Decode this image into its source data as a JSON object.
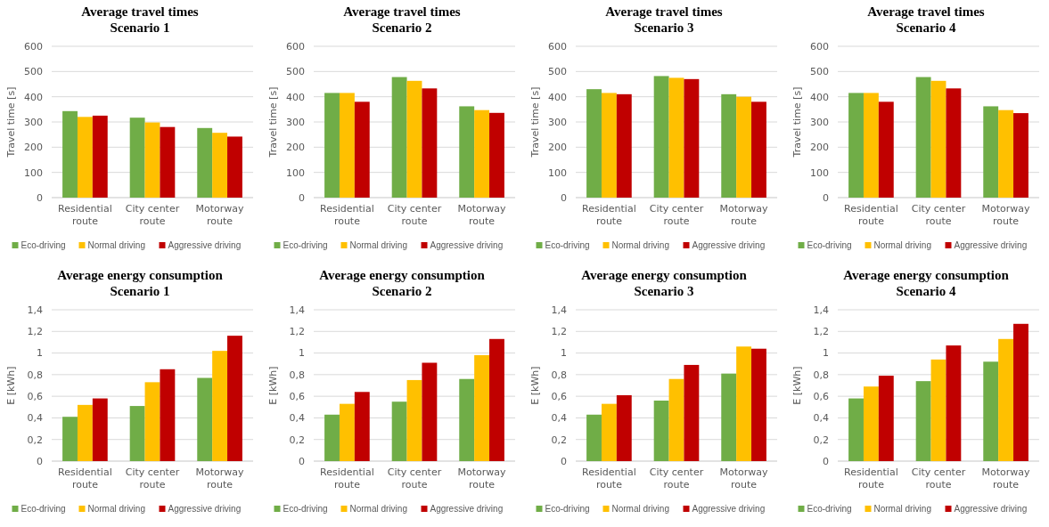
{
  "chart_data": [
    {
      "type": "bar",
      "title": "Average travel times",
      "subtitle": "Scenario 1",
      "ylabel": "Travel time [s]",
      "categories": [
        "Residential route",
        "City center route",
        "Motorway route"
      ],
      "ylim": [
        0,
        600
      ],
      "yticks": [
        0,
        100,
        200,
        300,
        400,
        500,
        600
      ],
      "grid": "y",
      "legend": "bottom",
      "series": [
        {
          "name": "Eco-driving",
          "color": "#70ad47",
          "values": [
            343,
            317,
            276
          ]
        },
        {
          "name": "Normal driving",
          "color": "#ffc000",
          "values": [
            320,
            298,
            257
          ]
        },
        {
          "name": "Aggressive driving",
          "color": "#c00000",
          "values": [
            325,
            280,
            242
          ]
        }
      ]
    },
    {
      "type": "bar",
      "title": "Average travel times",
      "subtitle": "Scenario 2",
      "ylabel": "Travel time [s]",
      "categories": [
        "Residential route",
        "City center route",
        "Motorway route"
      ],
      "ylim": [
        0,
        600
      ],
      "yticks": [
        0,
        100,
        200,
        300,
        400,
        500,
        600
      ],
      "grid": "y",
      "legend": "bottom",
      "series": [
        {
          "name": "Eco-driving",
          "color": "#70ad47",
          "values": [
            415,
            478,
            362
          ]
        },
        {
          "name": "Normal driving",
          "color": "#ffc000",
          "values": [
            415,
            463,
            347
          ]
        },
        {
          "name": "Aggressive driving",
          "color": "#c00000",
          "values": [
            380,
            433,
            336
          ]
        }
      ]
    },
    {
      "type": "bar",
      "title": "Average travel times",
      "subtitle": "Scenario 3",
      "ylabel": "Travel time [s]",
      "categories": [
        "Residential route",
        "City center route",
        "Motorway route"
      ],
      "ylim": [
        0,
        600
      ],
      "yticks": [
        0,
        100,
        200,
        300,
        400,
        500,
        600
      ],
      "grid": "y",
      "legend": "bottom",
      "series": [
        {
          "name": "Eco-driving",
          "color": "#70ad47",
          "values": [
            430,
            482,
            410
          ]
        },
        {
          "name": "Normal driving",
          "color": "#ffc000",
          "values": [
            415,
            475,
            400
          ]
        },
        {
          "name": "Aggressive driving",
          "color": "#c00000",
          "values": [
            410,
            470,
            380
          ]
        }
      ]
    },
    {
      "type": "bar",
      "title": "Average travel times",
      "subtitle": "Scenario 4",
      "ylabel": "Travel time [s]",
      "categories": [
        "Residential route",
        "City center route",
        "Motorway route"
      ],
      "ylim": [
        0,
        600
      ],
      "yticks": [
        0,
        100,
        200,
        300,
        400,
        500,
        600
      ],
      "grid": "y",
      "legend": "bottom",
      "series": [
        {
          "name": "Eco-driving",
          "color": "#70ad47",
          "values": [
            415,
            478,
            362
          ]
        },
        {
          "name": "Normal driving",
          "color": "#ffc000",
          "values": [
            415,
            463,
            347
          ]
        },
        {
          "name": "Aggressive driving",
          "color": "#c00000",
          "values": [
            380,
            433,
            335
          ]
        }
      ]
    },
    {
      "type": "bar",
      "title": "Average energy consumption",
      "subtitle": "Scenario 1",
      "ylabel": "E [kWh]",
      "categories": [
        "Residential route",
        "City center route",
        "Motorway route"
      ],
      "ylim": [
        0,
        1.4
      ],
      "yticks": [
        0,
        {
          "value": 0.2,
          "label": "0,2"
        },
        {
          "value": 0.4,
          "label": "0,4"
        },
        {
          "value": 0.6,
          "label": "0,6"
        },
        {
          "value": 0.8,
          "label": "0,8"
        },
        1,
        {
          "value": 1.2,
          "label": "1,2"
        },
        {
          "value": 1.4,
          "label": "1,4"
        }
      ],
      "grid": "y",
      "legend": "bottom",
      "series": [
        {
          "name": "Eco-driving",
          "color": "#70ad47",
          "values": [
            0.41,
            0.51,
            0.77
          ]
        },
        {
          "name": "Normal driving",
          "color": "#ffc000",
          "values": [
            0.52,
            0.73,
            1.02
          ]
        },
        {
          "name": "Aggressive driving",
          "color": "#c00000",
          "values": [
            0.58,
            0.85,
            1.16
          ]
        }
      ]
    },
    {
      "type": "bar",
      "title": "Average energy consumption",
      "subtitle": "Scenario 2",
      "ylabel": "E [kWh]",
      "categories": [
        "Residential route",
        "City center route",
        "Motorway route"
      ],
      "ylim": [
        0,
        1.4
      ],
      "yticks": [
        0,
        {
          "value": 0.2,
          "label": "0,2"
        },
        {
          "value": 0.4,
          "label": "0,4"
        },
        {
          "value": 0.6,
          "label": "0,6"
        },
        {
          "value": 0.8,
          "label": "0,8"
        },
        1,
        {
          "value": 1.2,
          "label": "1,2"
        },
        {
          "value": 1.4,
          "label": "1,4"
        }
      ],
      "grid": "y",
      "legend": "bottom",
      "series": [
        {
          "name": "Eco-driving",
          "color": "#70ad47",
          "values": [
            0.43,
            0.55,
            0.76
          ]
        },
        {
          "name": "Normal driving",
          "color": "#ffc000",
          "values": [
            0.53,
            0.75,
            0.98
          ]
        },
        {
          "name": "Aggressive driving",
          "color": "#c00000",
          "values": [
            0.64,
            0.91,
            1.13
          ]
        }
      ]
    },
    {
      "type": "bar",
      "title": "Average energy consumption",
      "subtitle": "Scenario 3",
      "ylabel": "E [kWh]",
      "categories": [
        "Residential route",
        "City center route",
        "Motorway route"
      ],
      "ylim": [
        0,
        1.4
      ],
      "yticks": [
        0,
        {
          "value": 0.2,
          "label": "0,2"
        },
        {
          "value": 0.4,
          "label": "0,4"
        },
        {
          "value": 0.6,
          "label": "0,6"
        },
        {
          "value": 0.8,
          "label": "0,8"
        },
        1,
        {
          "value": 1.2,
          "label": "1,2"
        },
        {
          "value": 1.4,
          "label": "1,4"
        }
      ],
      "grid": "y",
      "legend": "bottom",
      "series": [
        {
          "name": "Eco-driving",
          "color": "#70ad47",
          "values": [
            0.43,
            0.56,
            0.81
          ]
        },
        {
          "name": "Normal driving",
          "color": "#ffc000",
          "values": [
            0.53,
            0.76,
            1.06
          ]
        },
        {
          "name": "Aggressive driving",
          "color": "#c00000",
          "values": [
            0.61,
            0.89,
            1.04
          ]
        }
      ]
    },
    {
      "type": "bar",
      "title": "Average energy consumption",
      "subtitle": "Scenario 4",
      "ylabel": "E [kWh]",
      "categories": [
        "Residential route",
        "City center route",
        "Motorway route"
      ],
      "ylim": [
        0,
        1.4
      ],
      "yticks": [
        0,
        {
          "value": 0.2,
          "label": "0,2"
        },
        {
          "value": 0.4,
          "label": "0,4"
        },
        {
          "value": 0.6,
          "label": "0,6"
        },
        {
          "value": 0.8,
          "label": "0,8"
        },
        1,
        {
          "value": 1.2,
          "label": "1,2"
        },
        {
          "value": 1.4,
          "label": "1,4"
        }
      ],
      "grid": "y",
      "legend": "bottom",
      "series": [
        {
          "name": "Eco-driving",
          "color": "#70ad47",
          "values": [
            0.58,
            0.74,
            0.92
          ]
        },
        {
          "name": "Normal driving",
          "color": "#ffc000",
          "values": [
            0.69,
            0.94,
            1.13
          ]
        },
        {
          "name": "Aggressive driving",
          "color": "#c00000",
          "values": [
            0.79,
            1.07,
            1.27
          ]
        }
      ]
    }
  ]
}
